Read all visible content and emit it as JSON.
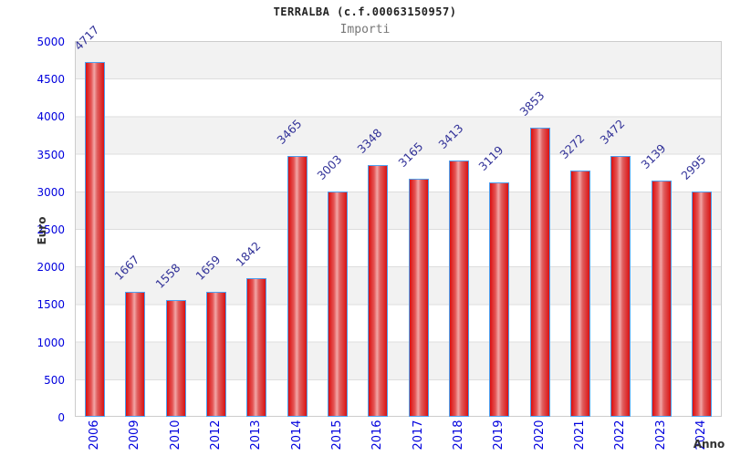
{
  "header": {
    "title": "TERRALBA (c.f.00063150957)",
    "subtitle": "Importi"
  },
  "chart_data": {
    "type": "bar",
    "title": "TERRALBA (c.f.00063150957)",
    "subtitle": "Importi",
    "xlabel": "Anno",
    "ylabel": "Euro",
    "categories": [
      "2006",
      "2009",
      "2010",
      "2012",
      "2013",
      "2014",
      "2015",
      "2016",
      "2017",
      "2018",
      "2019",
      "2020",
      "2021",
      "2022",
      "2023",
      "2024"
    ],
    "values": [
      4717,
      1667,
      1558,
      1659,
      1842,
      3465,
      3003,
      3348,
      3165,
      3413,
      3119,
      3853,
      3272,
      3472,
      3139,
      2995
    ],
    "ylim": [
      0,
      5000
    ],
    "ytick_step": 500,
    "ytick_labels": [
      "0",
      "500",
      "1000",
      "1500",
      "2000",
      "2500",
      "3000",
      "3500",
      "4000",
      "4500",
      "5000"
    ],
    "grid": "alternating-horizontal-bands",
    "legend": "none",
    "colors": {
      "bar_fill": "#dc0f0f",
      "bar_fill_highlight": "#f2a6a6",
      "bar_border": "#4da0f0",
      "tick_label": "#0000dd",
      "value_label": "#333399",
      "band_gray": "#f2f2f2",
      "band_white": "#ffffff",
      "gridline": "#dddddd",
      "plot_border": "#cccccc",
      "axis_label": "#333333",
      "title": "#222222",
      "subtitle": "#777777"
    }
  }
}
